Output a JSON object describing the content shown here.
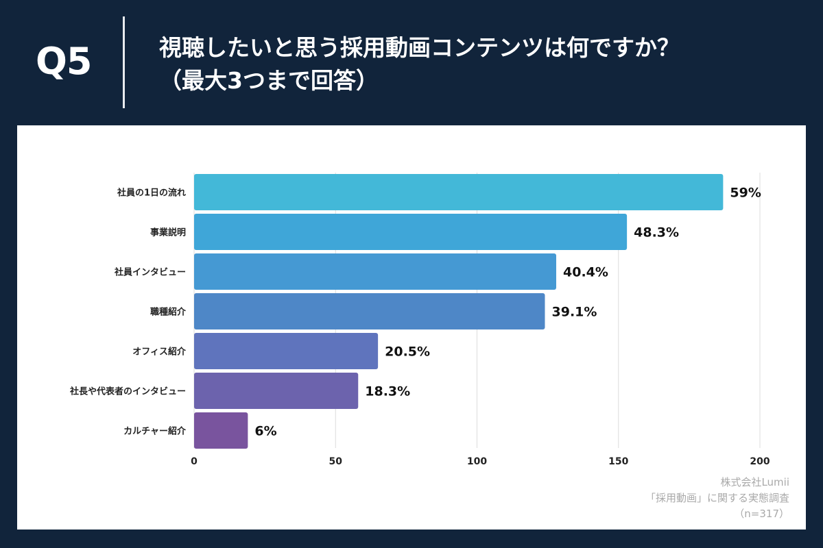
{
  "header": {
    "question_number": "Q5",
    "title_line1": "視聴したいと思う採用動画コンテンツは何ですか？",
    "title_line2": "（最大3つまで回答）"
  },
  "colors": {
    "background": "#11243b",
    "card": "#ffffff",
    "gridline": "#dcdcdc"
  },
  "chart_data": {
    "type": "bar",
    "orientation": "horizontal",
    "categories": [
      "社員の1日の流れ",
      "事業説明",
      "社員インタビュー",
      "職種紹介",
      "オフィス紹介",
      "社長や代表者のインタビュー",
      "カルチャー紹介"
    ],
    "values": [
      187,
      153,
      128,
      124,
      65,
      58,
      19
    ],
    "data_labels": [
      "59%",
      "48.3%",
      "40.4%",
      "39.1%",
      "20.5%",
      "18.3%",
      "6%"
    ],
    "bar_colors": [
      "#43b8d8",
      "#3fa6d8",
      "#4599d3",
      "#4e87c7",
      "#5f74bd",
      "#6c63ad",
      "#79549e"
    ],
    "xlim": [
      0,
      200
    ],
    "xticks": [
      0,
      50,
      100,
      150,
      200
    ],
    "xtick_labels": [
      "0",
      "50",
      "100",
      "150",
      "200"
    ],
    "grid": true,
    "title": "",
    "xlabel": "",
    "ylabel": ""
  },
  "source": {
    "company": "株式会社Lumii",
    "survey": "「採用動画」に関する実態調査",
    "sample": "（n=317）"
  }
}
